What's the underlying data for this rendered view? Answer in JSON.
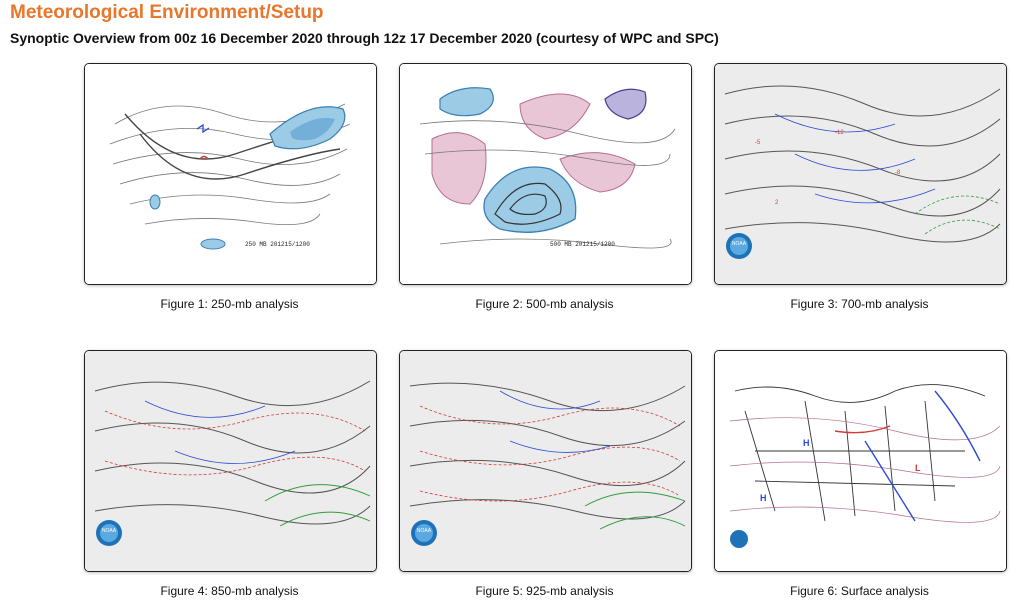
{
  "header": {
    "title": "Meteorological Environment/Setup",
    "subtitle": "Synoptic Overview from 00z 16 December 2020 through 12z 17 December 2020 (courtesy of WPC and SPC)"
  },
  "figures": [
    {
      "caption": "Figure 1: 250-mb analysis",
      "map_label": "250 MB 201215/1200"
    },
    {
      "caption": "Figure 2: 500-mb analysis",
      "map_label": "500 MB 201215/1200"
    },
    {
      "caption": "Figure 3: 700-mb analysis",
      "logo_text": "NOAA"
    },
    {
      "caption": "Figure 4: 850-mb analysis",
      "logo_text": "NOAA"
    },
    {
      "caption": "Figure 5: 925-mb analysis",
      "logo_text": "NOAA"
    },
    {
      "caption": "Figure 6: Surface analysis"
    }
  ],
  "colors": {
    "title": "#e8762b",
    "jet_fill": "#9ccbe6",
    "ridge_fill": "#e9c6d6",
    "isobar": "#555555",
    "front_warm": "#d23b3b",
    "front_cold": "#2b4bd1",
    "dewpoint": "#2f9e3b"
  }
}
